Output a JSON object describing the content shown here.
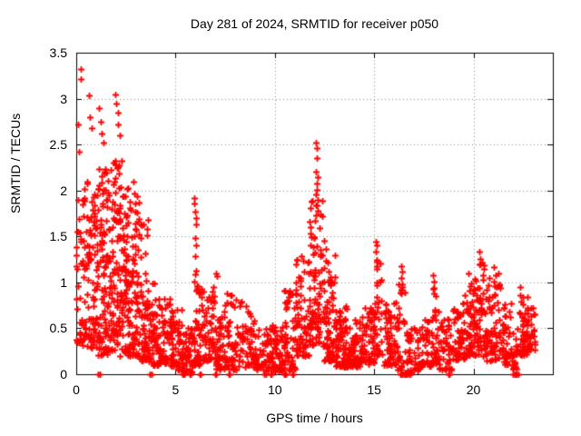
{
  "window": {
    "background": "#ffffff",
    "text_color": "#000000"
  },
  "chart_data": {
    "type": "scatter",
    "title": "Day 281 of 2024, SRMTID for receiver p050",
    "xlabel": "GPS time / hours",
    "ylabel": "SRMTID / TECUs",
    "xlim": [
      0,
      24
    ],
    "ylim": [
      0,
      3.5
    ],
    "xticks": [
      {
        "v": 0,
        "label": "0"
      },
      {
        "v": 5,
        "label": "5"
      },
      {
        "v": 10,
        "label": "10"
      },
      {
        "v": 15,
        "label": "15"
      },
      {
        "v": 20,
        "label": "20"
      }
    ],
    "yticks": [
      {
        "v": 0,
        "label": "0"
      },
      {
        "v": 0.5,
        "label": "0.5"
      },
      {
        "v": 1,
        "label": "1"
      },
      {
        "v": 1.5,
        "label": "1.5"
      },
      {
        "v": 2,
        "label": "2"
      },
      {
        "v": 2.5,
        "label": "2.5"
      },
      {
        "v": 3,
        "label": "3"
      },
      {
        "v": 3.5,
        "label": "3.5"
      }
    ],
    "grid": {
      "style": "dotted",
      "color": "#8c8c8c"
    },
    "border_color": "#000000",
    "legend": null,
    "marker": {
      "shape": "plus",
      "color": "#ff0000",
      "size": 7,
      "stroke": 1.8
    },
    "seed": 281,
    "clusters": [
      [
        0.0,
        0.55,
        0.3,
        2.1,
        60,
        1.4
      ],
      [
        0.55,
        1.05,
        0.25,
        2.05,
        70,
        1.4
      ],
      [
        1.05,
        1.55,
        0.2,
        2.25,
        85,
        1.4
      ],
      [
        1.55,
        2.15,
        0.25,
        2.35,
        95,
        1.4
      ],
      [
        2.15,
        2.65,
        0.2,
        2.1,
        85,
        1.5
      ],
      [
        2.65,
        3.15,
        0.2,
        2.05,
        70,
        1.6
      ],
      [
        3.15,
        3.65,
        0.15,
        1.7,
        60,
        1.7
      ],
      [
        3.65,
        4.15,
        0.1,
        1.0,
        50,
        1.6
      ],
      [
        4.15,
        4.75,
        0.12,
        0.85,
        58,
        1.6
      ],
      [
        4.75,
        5.35,
        0.05,
        0.7,
        60,
        1.7
      ],
      [
        5.35,
        5.85,
        0.02,
        0.55,
        45,
        1.6
      ],
      [
        5.85,
        6.25,
        0.1,
        1.1,
        45,
        1.8
      ],
      [
        6.25,
        6.95,
        0.15,
        1.0,
        55,
        1.8
      ],
      [
        6.95,
        7.45,
        0.05,
        0.7,
        45,
        1.7
      ],
      [
        7.45,
        8.15,
        0.05,
        0.88,
        55,
        1.7
      ],
      [
        8.15,
        9.05,
        0.08,
        0.8,
        60,
        1.7
      ],
      [
        9.05,
        9.85,
        0.04,
        0.5,
        50,
        1.6
      ],
      [
        9.85,
        10.45,
        0.02,
        0.55,
        50,
        1.6
      ],
      [
        10.45,
        11.05,
        0.05,
        0.95,
        55,
        1.7
      ],
      [
        11.05,
        11.75,
        0.2,
        1.3,
        70,
        1.5
      ],
      [
        11.75,
        12.45,
        0.3,
        1.9,
        85,
        1.4
      ],
      [
        12.45,
        13.05,
        0.15,
        1.3,
        70,
        1.8
      ],
      [
        13.05,
        13.65,
        0.08,
        0.75,
        70,
        1.6
      ],
      [
        13.65,
        14.35,
        0.08,
        0.6,
        65,
        1.5
      ],
      [
        14.35,
        15.05,
        0.1,
        0.75,
        60,
        1.6
      ],
      [
        15.05,
        15.35,
        0.2,
        1.3,
        30,
        1.5
      ],
      [
        15.35,
        16.15,
        0.1,
        0.8,
        60,
        1.6
      ],
      [
        16.15,
        16.55,
        0.05,
        1.0,
        30,
        1.6
      ],
      [
        16.55,
        17.25,
        0.02,
        0.55,
        40,
        1.6
      ],
      [
        17.25,
        17.95,
        0.08,
        0.6,
        45,
        1.6
      ],
      [
        17.95,
        18.25,
        0.12,
        0.95,
        28,
        1.5
      ],
      [
        18.25,
        18.95,
        0.05,
        0.6,
        45,
        1.6
      ],
      [
        18.95,
        19.65,
        0.15,
        0.9,
        55,
        1.6
      ],
      [
        19.65,
        20.25,
        0.2,
        1.1,
        60,
        1.5
      ],
      [
        20.25,
        20.65,
        0.2,
        1.25,
        45,
        1.5
      ],
      [
        20.65,
        21.35,
        0.15,
        1.1,
        60,
        1.6
      ],
      [
        21.35,
        21.95,
        0.1,
        0.8,
        45,
        1.6
      ],
      [
        21.95,
        22.25,
        0.05,
        0.5,
        22,
        1.6
      ],
      [
        22.25,
        22.75,
        0.2,
        0.95,
        50,
        1.5
      ],
      [
        22.75,
        23.1,
        0.25,
        0.72,
        25,
        1.4
      ]
    ],
    "outliers": [
      [
        0.1,
        2.72
      ],
      [
        0.15,
        2.42
      ],
      [
        0.22,
        3.32
      ],
      [
        0.23,
        3.21
      ],
      [
        0.64,
        3.04
      ],
      [
        0.7,
        2.8
      ],
      [
        0.78,
        2.68
      ],
      [
        1.15,
        2.9
      ],
      [
        1.25,
        2.75
      ],
      [
        1.3,
        2.62
      ],
      [
        1.38,
        2.52
      ],
      [
        1.98,
        3.05
      ],
      [
        2.02,
        2.95
      ],
      [
        2.08,
        2.85
      ],
      [
        2.12,
        2.72
      ],
      [
        2.18,
        2.6
      ],
      [
        2.28,
        2.32
      ],
      [
        2.88,
        2.1
      ],
      [
        2.93,
        1.97
      ],
      [
        2.98,
        1.86
      ],
      [
        3.04,
        1.76
      ],
      [
        3.1,
        1.66
      ],
      [
        5.93,
        1.92
      ],
      [
        5.96,
        1.86
      ],
      [
        5.99,
        1.77
      ],
      [
        6.02,
        1.7
      ],
      [
        6.05,
        1.63
      ],
      [
        6.0,
        1.48
      ],
      [
        6.03,
        1.4
      ],
      [
        6.0,
        1.29
      ],
      [
        6.05,
        1.13
      ],
      [
        7.05,
        1.1
      ],
      [
        7.1,
        1.07
      ],
      [
        12.07,
        2.52
      ],
      [
        12.12,
        2.46
      ],
      [
        12.1,
        2.35
      ],
      [
        12.08,
        2.2
      ],
      [
        12.14,
        2.15
      ],
      [
        12.1,
        2.08
      ],
      [
        12.12,
        2.01
      ],
      [
        12.09,
        1.96
      ],
      [
        12.16,
        1.9
      ],
      [
        12.5,
        1.45
      ],
      [
        12.56,
        1.36
      ],
      [
        15.1,
        1.44
      ],
      [
        15.12,
        1.4
      ],
      [
        15.1,
        1.33
      ],
      [
        15.14,
        1.25
      ],
      [
        15.11,
        1.18
      ],
      [
        16.35,
        1.18
      ],
      [
        16.4,
        1.12
      ],
      [
        16.38,
        1.05
      ],
      [
        16.41,
        0.98
      ],
      [
        17.95,
        1.08
      ],
      [
        18.0,
        1.01
      ],
      [
        18.02,
        0.94
      ],
      [
        20.28,
        1.33
      ],
      [
        20.32,
        1.26
      ],
      [
        20.36,
        1.2
      ],
      [
        21.05,
        1.17
      ],
      [
        21.1,
        1.08
      ],
      [
        22.35,
        0.95
      ]
    ],
    "zeros": [
      1.1,
      1.17,
      3.72,
      3.8,
      5.35,
      5.4,
      5.45,
      5.7,
      5.74,
      6.2,
      6.24,
      7.0,
      7.04,
      7.7,
      7.74,
      9.45,
      9.55,
      9.8,
      9.84,
      10.45,
      10.5,
      10.55,
      10.9,
      10.94,
      16.3,
      16.36,
      16.42,
      16.48,
      16.54,
      16.6,
      16.66,
      16.72,
      16.8,
      18.72,
      18.78,
      22.0,
      22.06,
      22.12,
      22.18,
      22.24
    ]
  }
}
